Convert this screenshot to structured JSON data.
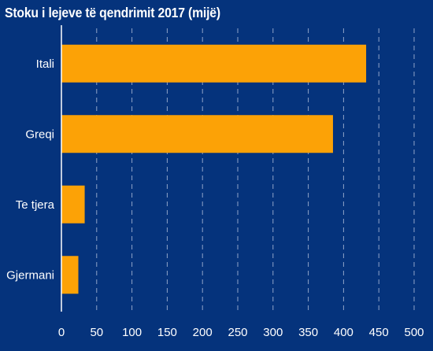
{
  "chart_data": {
    "type": "bar",
    "orientation": "horizontal",
    "title": "Stoku i lejeve të qendrimit 2017 (mijë)",
    "categories": [
      "Itali",
      "Greqi",
      "Te tjera",
      "Gjermani"
    ],
    "values": [
      432,
      385,
      33,
      24
    ],
    "xlim": [
      0,
      500
    ],
    "xticks": [
      0,
      50,
      100,
      150,
      200,
      250,
      300,
      350,
      400,
      450,
      500
    ],
    "xlabel": "",
    "ylabel": "",
    "grid": "vertical dashed",
    "colors": {
      "background": "#05337c",
      "bar": "#fca206",
      "grid": "#8fa3c8",
      "axis": "#ffffff",
      "text": "#ffffff"
    }
  }
}
